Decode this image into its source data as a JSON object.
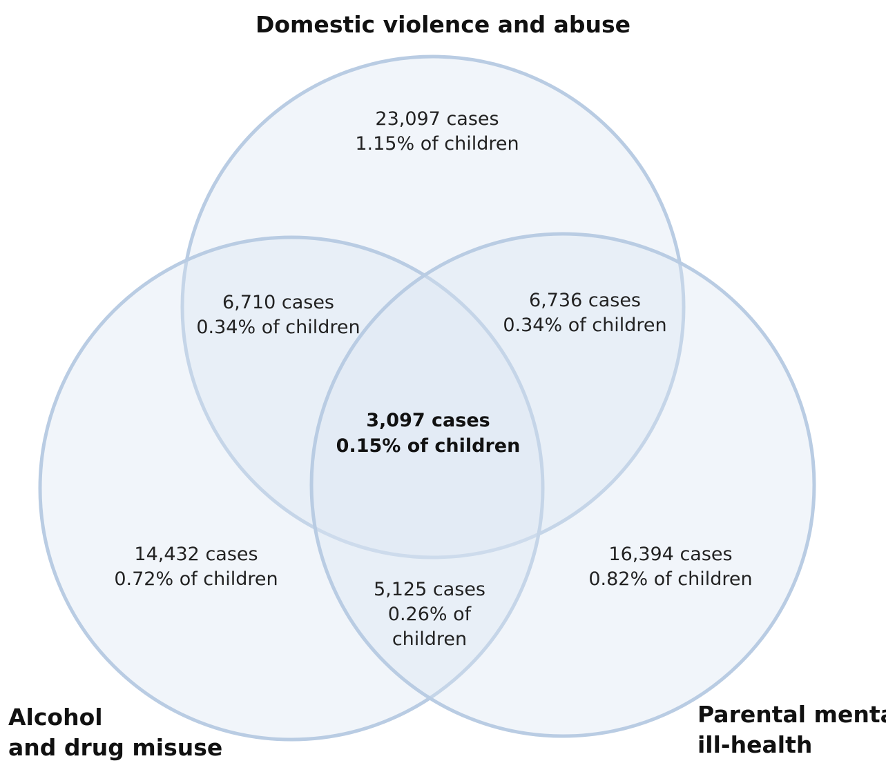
{
  "colors": {
    "circle_fill": "#dbe5f3",
    "circle_stroke": "#b9cce3",
    "background": "#ffffff"
  },
  "sets": {
    "domestic": {
      "title": "Domestic violence and abuse"
    },
    "alcohol": {
      "title_lines": [
        "Alcohol",
        "and drug misuse"
      ]
    },
    "mental": {
      "title_lines": [
        "Parental mental",
        "ill-health"
      ]
    }
  },
  "regions": {
    "domestic_only": {
      "lines": [
        "23,097 cases",
        "1.15% of children"
      ],
      "cases": 23097,
      "percent": 1.15
    },
    "domestic_alcohol": {
      "lines": [
        "6,710 cases",
        "0.34% of children"
      ],
      "cases": 6710,
      "percent": 0.34
    },
    "domestic_mental": {
      "lines": [
        "6,736 cases",
        "0.34% of children"
      ],
      "cases": 6736,
      "percent": 0.34
    },
    "all_three": {
      "lines": [
        "3,097 cases",
        "0.15% of children"
      ],
      "cases": 3097,
      "percent": 0.15
    },
    "alcohol_only": {
      "lines": [
        "14,432 cases",
        "0.72% of children"
      ],
      "cases": 14432,
      "percent": 0.72
    },
    "mental_only": {
      "lines": [
        "16,394 cases",
        "0.82% of children"
      ],
      "cases": 16394,
      "percent": 0.82
    },
    "alcohol_mental": {
      "lines": [
        "5,125 cases",
        "0.26% of",
        "children"
      ],
      "cases": 5125,
      "percent": 0.26
    }
  }
}
